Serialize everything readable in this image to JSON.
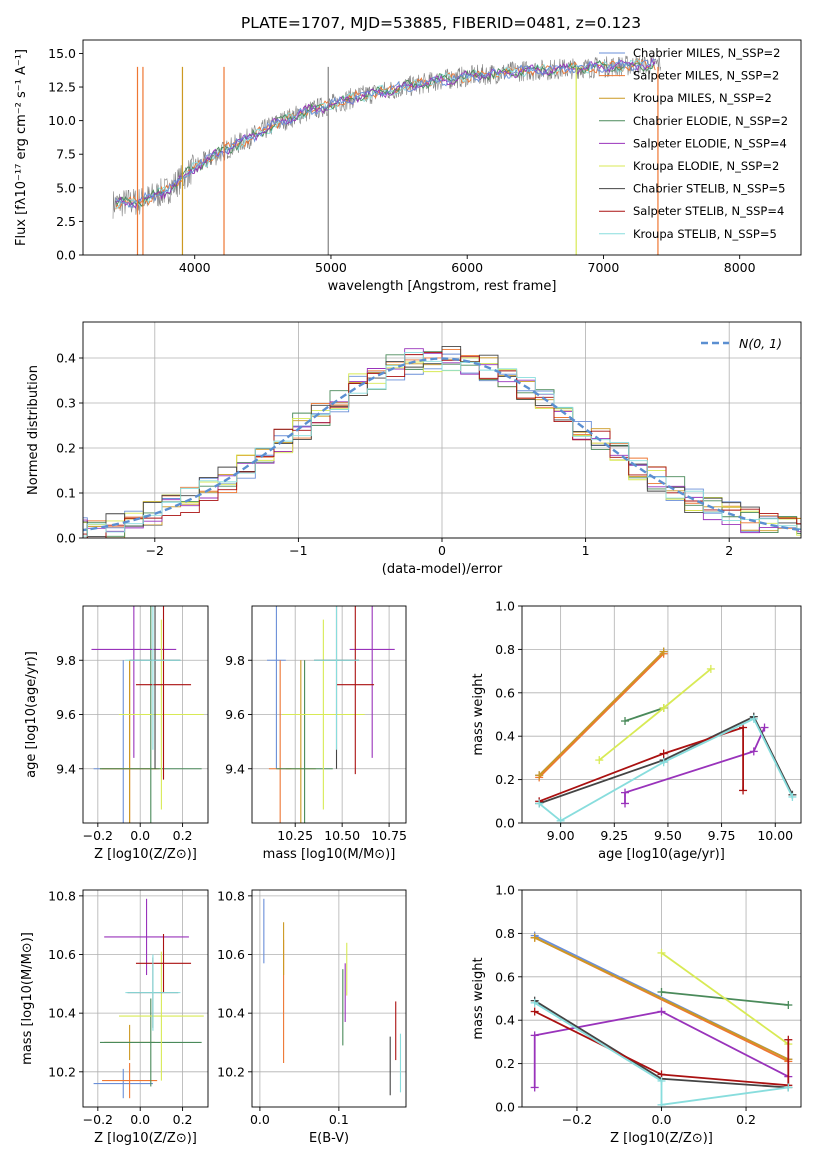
{
  "title": "PLATE=1707, MJD=53885, FIBERID=0481, z=0.123",
  "series_colors": [
    "#6a8fd8",
    "#ee7733",
    "#cc9922",
    "#4a8a5a",
    "#9933bb",
    "#d8ea55",
    "#444444",
    "#aa1111",
    "#88dddd"
  ],
  "chart_data": [
    {
      "id": "spectrum",
      "type": "line",
      "title": "PLATE=1707, MJD=53885, FIBERID=0481, z=0.123",
      "xlabel": "wavelength [Angstrom, rest frame]",
      "ylabel": "Flux [fλ10⁻¹⁷ erg cm⁻² s⁻¹ A⁻¹]",
      "xlim": [
        3180,
        8450
      ],
      "ylim": [
        0,
        16
      ],
      "xticks": [
        4000,
        5000,
        6000,
        7000,
        8000
      ],
      "yticks": [
        0,
        2.5,
        5.0,
        7.5,
        10.0,
        12.5,
        15.0
      ],
      "legend_position": "top-right",
      "continuum": {
        "x": [
          3400,
          3600,
          3800,
          4000,
          4200,
          4400,
          4600,
          4800,
          5000,
          5200,
          5400,
          5600,
          5800,
          6000,
          6200,
          6400,
          6600,
          6800,
          7000,
          7200,
          7400
        ],
        "y": [
          3.8,
          4.0,
          4.8,
          6.5,
          7.7,
          8.7,
          9.8,
          10.6,
          11.2,
          11.8,
          12.2,
          12.6,
          13.0,
          13.3,
          13.5,
          13.7,
          13.8,
          13.9,
          14.0,
          14.1,
          14.2
        ]
      },
      "series": [
        {
          "name": "Chabrier MILES, N_SSP=2"
        },
        {
          "name": "Salpeter MILES, N_SSP=2"
        },
        {
          "name": "Kroupa MILES, N_SSP=2"
        },
        {
          "name": "Chabrier ELODIE, N_SSP=2"
        },
        {
          "name": "Salpeter ELODIE, N_SSP=4"
        },
        {
          "name": "Kroupa ELODIE, N_SSP=2"
        },
        {
          "name": "Chabrier STELIB, N_SSP=5"
        },
        {
          "name": "Salpeter STELIB, N_SSP=4"
        },
        {
          "name": "Kroupa STELIB, N_SSP=5"
        }
      ]
    },
    {
      "id": "residuals",
      "type": "histogram",
      "xlabel": "(data-model)/error",
      "ylabel": "Normed distribution",
      "xlim": [
        -2.5,
        2.5
      ],
      "ylim": [
        0,
        0.48
      ],
      "xticks": [
        -2,
        -1,
        0,
        1,
        2
      ],
      "yticks": [
        0.0,
        0.1,
        0.2,
        0.3,
        0.4
      ],
      "grid": true,
      "bins": 40,
      "reference_label": "N(0, 1)",
      "legend_position": "top-right"
    },
    {
      "id": "age-vs-z",
      "type": "errorbar",
      "xlabel": "Z [log10(Z/Z⊙)]",
      "ylabel": "age  [log10(age/yr)]",
      "xlim": [
        -0.27,
        0.32
      ],
      "ylim": [
        9.2,
        10.0
      ],
      "xticks": [
        -0.2,
        0.0,
        0.2
      ],
      "yticks": [
        9.4,
        9.6,
        9.8
      ],
      "grid": true,
      "points": [
        {
          "x": -0.08,
          "xerr": 0.14,
          "y": 9.4,
          "yerr": 0.4
        },
        {
          "x": -0.05,
          "xerr": 0.13,
          "y": 9.4,
          "yerr": 0.4
        },
        {
          "x": -0.05,
          "xerr": 0.14,
          "y": 9.4,
          "yerr": 0.4
        },
        {
          "x": 0.05,
          "xerr": 0.24,
          "y": 9.4,
          "yerr": 0.6
        },
        {
          "x": -0.03,
          "xerr": 0.2,
          "y": 9.84,
          "yerr": 0.4
        },
        {
          "x": 0.1,
          "xerr": 0.2,
          "y": 9.6,
          "yerr": 0.35
        },
        {
          "x": 0.07,
          "xerr": 0.12,
          "y": 9.8,
          "yerr": 0.4
        },
        {
          "x": 0.11,
          "xerr": 0.13,
          "y": 9.71,
          "yerr": 0.35
        },
        {
          "x": 0.06,
          "xerr": 0.13,
          "y": 9.8,
          "yerr": 0.33
        }
      ]
    },
    {
      "id": "age-vs-mass",
      "type": "errorbar",
      "xlabel": "mass [log10(M/M⊙)]",
      "ylabel": "",
      "xlim": [
        10.02,
        10.84
      ],
      "ylim": [
        9.2,
        10.0
      ],
      "xticks": [
        10.25,
        10.5,
        10.75
      ],
      "yticks": [
        9.4,
        9.6,
        9.8
      ],
      "grid": true,
      "points": [
        {
          "x": 10.15,
          "xerr": 0.05,
          "y": 9.8,
          "yerr": 0.4
        },
        {
          "x": 10.17,
          "xerr": 0.06,
          "y": 9.4,
          "yerr": 0.4
        },
        {
          "x": 10.28,
          "xerr": 0.08,
          "y": 9.4,
          "yerr": 0.4
        },
        {
          "x": 10.3,
          "xerr": 0.15,
          "y": 9.4,
          "yerr": 0.4
        },
        {
          "x": 10.66,
          "xerr": 0.12,
          "y": 9.84,
          "yerr": 0.4
        },
        {
          "x": 10.4,
          "xerr": 0.22,
          "y": 9.6,
          "yerr": 0.35
        },
        {
          "x": 10.47,
          "xerr": 0.12,
          "y": 9.8,
          "yerr": 0.4
        },
        {
          "x": 10.57,
          "xerr": 0.1,
          "y": 9.71,
          "yerr": 0.33
        },
        {
          "x": 10.47,
          "xerr": 0.12,
          "y": 9.8,
          "yerr": 0.33
        }
      ]
    },
    {
      "id": "weight-vs-age",
      "type": "line",
      "xlabel": "age  [log10(age/yr)]",
      "ylabel": "mass weight",
      "xlim": [
        8.82,
        10.12
      ],
      "ylim": [
        0,
        1.0
      ],
      "xticks": [
        9.0,
        9.25,
        9.5,
        9.75,
        10.0
      ],
      "yticks": [
        0.0,
        0.2,
        0.4,
        0.6,
        0.8,
        1.0
      ],
      "grid": true,
      "series": [
        {
          "x": [
            8.9,
            9.48
          ],
          "y": [
            0.22,
            0.79
          ]
        },
        {
          "x": [
            8.9,
            9.48
          ],
          "y": [
            0.21,
            0.78
          ]
        },
        {
          "x": [
            8.9,
            9.48
          ],
          "y": [
            0.22,
            0.79
          ]
        },
        {
          "x": [
            9.3,
            9.48
          ],
          "y": [
            0.47,
            0.53
          ]
        },
        {
          "x": [
            9.3,
            9.3,
            9.9,
            9.95
          ],
          "y": [
            0.09,
            0.14,
            0.33,
            0.44
          ]
        },
        {
          "x": [
            9.18,
            9.48,
            9.7
          ],
          "y": [
            0.29,
            0.53,
            0.71
          ]
        },
        {
          "x": [
            8.9,
            9.48,
            9.9,
            10.08
          ],
          "y": [
            0.09,
            0.29,
            0.49,
            0.13
          ]
        },
        {
          "x": [
            8.9,
            9.48,
            9.85,
            9.85
          ],
          "y": [
            0.1,
            0.32,
            0.44,
            0.15
          ]
        },
        {
          "x": [
            8.9,
            9.0,
            9.48,
            9.9,
            10.08
          ],
          "y": [
            0.09,
            0.01,
            0.28,
            0.48,
            0.12
          ]
        }
      ]
    },
    {
      "id": "mass-vs-z",
      "type": "errorbar",
      "xlabel": "Z [log10(Z/Z⊙)]",
      "ylabel": "mass [log10(M/M⊙)]",
      "xlim": [
        -0.27,
        0.32
      ],
      "ylim": [
        10.08,
        10.82
      ],
      "xticks": [
        -0.2,
        0.0,
        0.2
      ],
      "yticks": [
        10.2,
        10.4,
        10.6,
        10.8
      ],
      "grid": true,
      "points": [
        {
          "x": -0.08,
          "xerr": 0.14,
          "y": 10.16,
          "yerr": 0.05
        },
        {
          "x": -0.05,
          "xerr": 0.13,
          "y": 10.17,
          "yerr": 0.06
        },
        {
          "x": -0.05,
          "xerr": 0.12,
          "y": 10.3,
          "yerr": 0.06
        },
        {
          "x": 0.05,
          "xerr": 0.24,
          "y": 10.3,
          "yerr": 0.15
        },
        {
          "x": 0.03,
          "xerr": 0.2,
          "y": 10.66,
          "yerr": 0.13
        },
        {
          "x": 0.1,
          "xerr": 0.2,
          "y": 10.39,
          "yerr": 0.22
        },
        {
          "x": 0.06,
          "xerr": 0.12,
          "y": 10.47,
          "yerr": 0.12
        },
        {
          "x": 0.11,
          "xerr": 0.13,
          "y": 10.57,
          "yerr": 0.1
        },
        {
          "x": 0.06,
          "xerr": 0.13,
          "y": 10.47,
          "yerr": 0.13
        }
      ]
    },
    {
      "id": "mass-vs-ebv",
      "type": "errorbar",
      "xlabel": "E(B-V)",
      "ylabel": "",
      "xlim": [
        -0.01,
        0.185
      ],
      "ylim": [
        10.08,
        10.82
      ],
      "xticks": [
        0.0,
        0.1
      ],
      "yticks": [
        10.2,
        10.4,
        10.6,
        10.8
      ],
      "grid": true,
      "points": [
        {
          "x": 0.005,
          "y": 10.68,
          "yerr": 0.11
        },
        {
          "x": 0.03,
          "y": 10.44,
          "yerr": 0.21
        },
        {
          "x": 0.03,
          "y": 10.62,
          "yerr": 0.09
        },
        {
          "x": 0.105,
          "y": 10.42,
          "yerr": 0.13
        },
        {
          "x": 0.108,
          "y": 10.47,
          "yerr": 0.1
        },
        {
          "x": 0.11,
          "y": 10.55,
          "yerr": 0.09
        },
        {
          "x": 0.165,
          "y": 10.22,
          "yerr": 0.1
        },
        {
          "x": 0.172,
          "y": 10.34,
          "yerr": 0.1
        },
        {
          "x": 0.178,
          "y": 10.23,
          "yerr": 0.1
        }
      ]
    },
    {
      "id": "weight-vs-z",
      "type": "line",
      "xlabel": "Z [log10(Z/Z⊙)]",
      "ylabel": "mass weight",
      "xlim": [
        -0.33,
        0.33
      ],
      "ylim": [
        0,
        1.0
      ],
      "xticks": [
        -0.2,
        0.0,
        0.2
      ],
      "yticks": [
        0.0,
        0.2,
        0.4,
        0.6,
        0.8,
        1.0
      ],
      "grid": true,
      "series": [
        {
          "x": [
            -0.3,
            0.3
          ],
          "y": [
            0.79,
            0.22
          ]
        },
        {
          "x": [
            -0.3,
            0.3
          ],
          "y": [
            0.78,
            0.21
          ]
        },
        {
          "x": [
            -0.3,
            0.3
          ],
          "y": [
            0.78,
            0.22
          ]
        },
        {
          "x": [
            0.0,
            0.3
          ],
          "y": [
            0.53,
            0.47
          ]
        },
        {
          "x": [
            -0.3,
            -0.3,
            0.0,
            0.3
          ],
          "y": [
            0.09,
            0.33,
            0.44,
            0.14
          ]
        },
        {
          "x": [
            0.0,
            0.3
          ],
          "y": [
            0.71,
            0.29
          ]
        },
        {
          "x": [
            -0.3,
            0.0,
            0.3
          ],
          "y": [
            0.49,
            0.13,
            0.09
          ]
        },
        {
          "x": [
            -0.3,
            0.0,
            0.3,
            0.3
          ],
          "y": [
            0.44,
            0.15,
            0.1,
            0.31
          ]
        },
        {
          "x": [
            -0.3,
            0.0,
            0.0,
            0.3
          ],
          "y": [
            0.48,
            0.12,
            0.01,
            0.09
          ]
        }
      ]
    }
  ]
}
